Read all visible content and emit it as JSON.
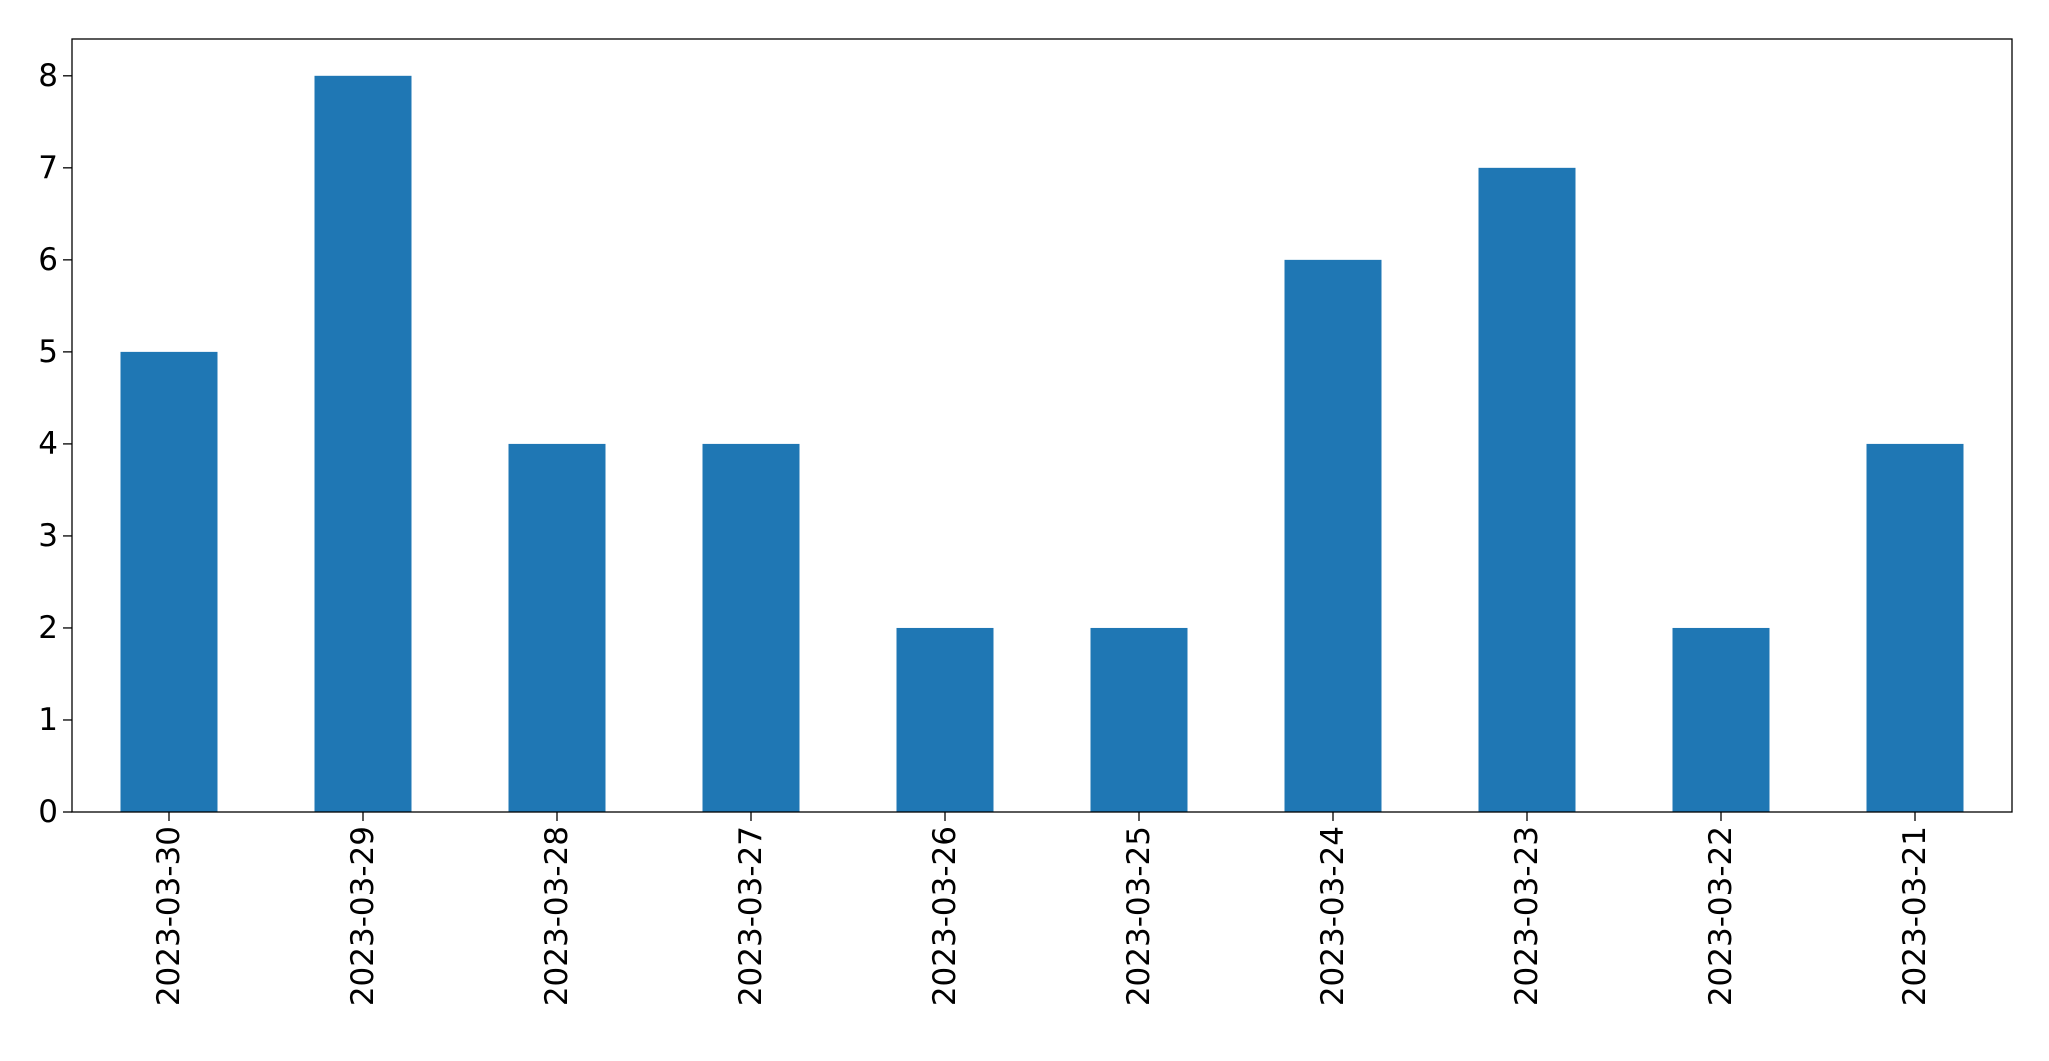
{
  "chart_data": {
    "type": "bar",
    "categories": [
      "2023-03-30",
      "2023-03-29",
      "2023-03-28",
      "2023-03-27",
      "2023-03-26",
      "2023-03-25",
      "2023-03-24",
      "2023-03-23",
      "2023-03-22",
      "2023-03-21"
    ],
    "values": [
      5,
      8,
      4,
      4,
      2,
      2,
      6,
      7,
      2,
      4
    ],
    "color": "#1f77b4",
    "ylim": [
      0,
      8.4
    ],
    "yticks": [
      0,
      1,
      2,
      3,
      4,
      5,
      6,
      7,
      8
    ],
    "grid": false
  }
}
